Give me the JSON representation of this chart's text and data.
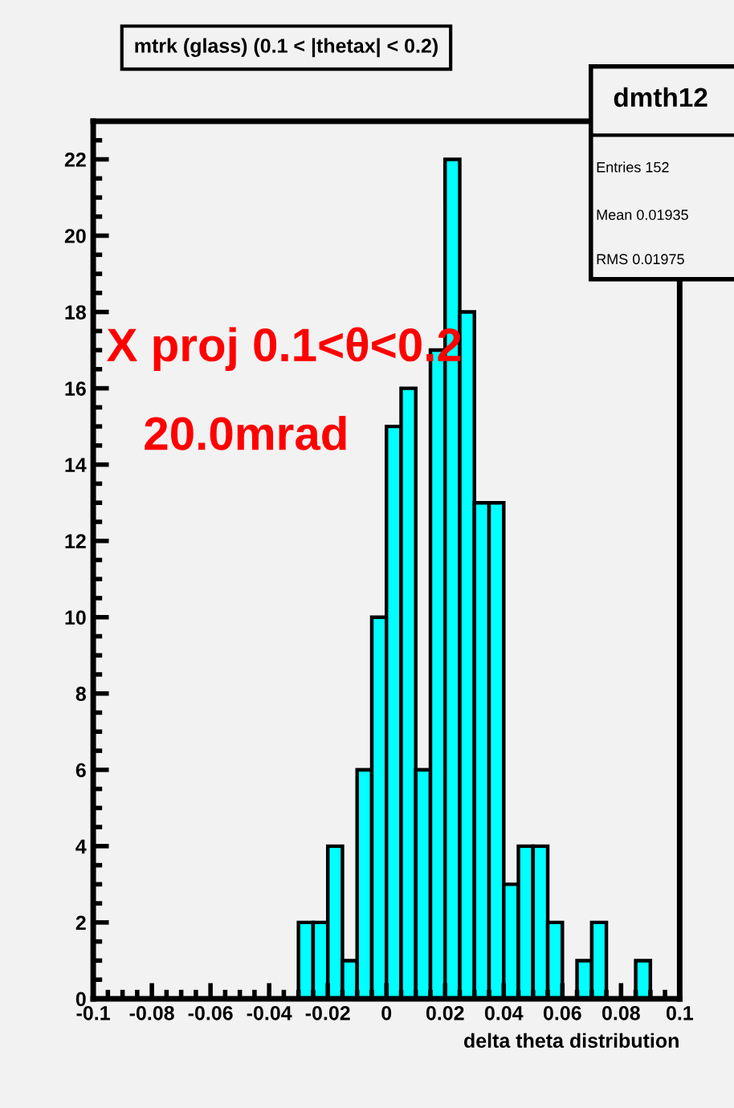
{
  "chart_data": {
    "type": "histogram",
    "title": "mtrk (glass) (0.1 < |thetax| < 0.2)",
    "xlabel": "delta theta distribution",
    "bins": [
      -0.1,
      -0.095,
      -0.09,
      -0.085,
      -0.08,
      -0.075,
      -0.07,
      -0.065,
      -0.06,
      -0.055,
      -0.05,
      -0.045,
      -0.04,
      -0.035,
      -0.03,
      -0.025,
      -0.02,
      -0.015,
      -0.01,
      -0.005,
      0,
      0.005,
      0.01,
      0.015,
      0.02,
      0.025,
      0.03,
      0.035,
      0.04,
      0.045,
      0.05,
      0.055,
      0.06,
      0.065,
      0.07,
      0.075,
      0.08,
      0.085,
      0.09,
      0.095,
      0.1
    ],
    "values": [
      0,
      0,
      0,
      0,
      0,
      0,
      0,
      0,
      0,
      0,
      0,
      0,
      0,
      0,
      2,
      2,
      4,
      1,
      6,
      10,
      15,
      16,
      6,
      17,
      22,
      18,
      13,
      13,
      3,
      4,
      4,
      2,
      0,
      1,
      2,
      0,
      0,
      1,
      0,
      0
    ],
    "color": "#00ffff",
    "xlim": [
      -0.1,
      0.1
    ],
    "ylim": [
      0,
      23
    ],
    "xticks": [
      -0.1,
      -0.08,
      -0.06,
      -0.04,
      -0.02,
      0,
      0.02,
      0.04,
      0.06,
      0.08,
      0.1
    ],
    "yticks": [
      0,
      2,
      4,
      6,
      8,
      10,
      12,
      14,
      16,
      18,
      20,
      22
    ],
    "grid": false,
    "annotations": [
      "dmth12",
      "Entries 152",
      "Mean 0.01935",
      "RMS 0.01975",
      "X proj 0.1<θ<0.2",
      "20.0mrad"
    ]
  }
}
